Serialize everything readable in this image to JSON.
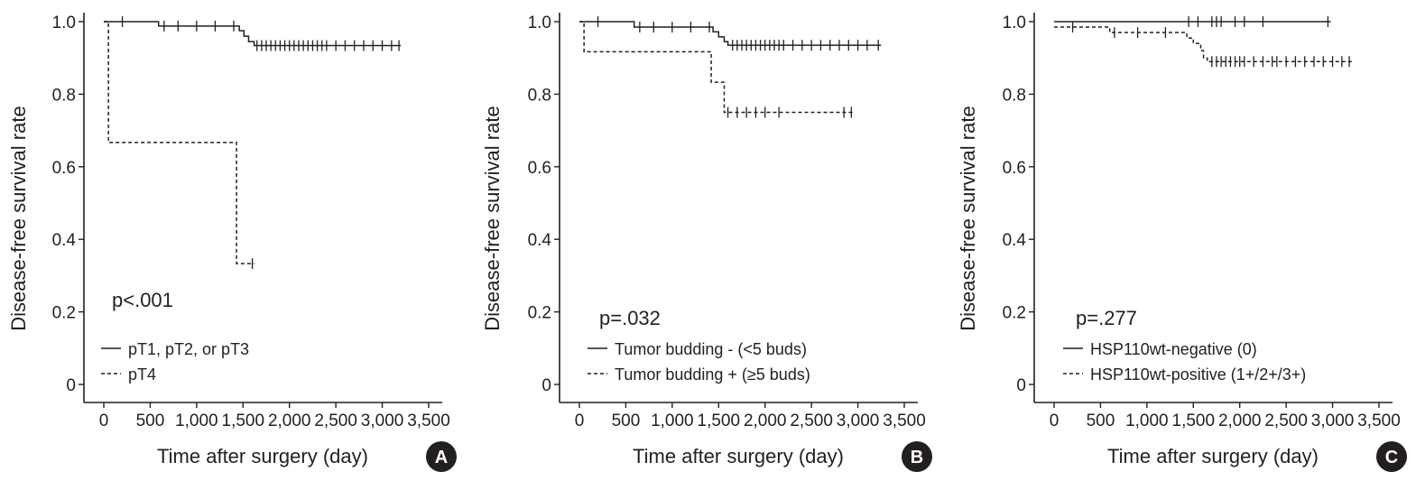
{
  "chart_data": [
    {
      "type": "line",
      "panel_label": "A",
      "xlabel": "Time after surgery (day)",
      "ylabel": "Disease-free survival rate",
      "xlim": [
        0,
        3500
      ],
      "ylim": [
        0,
        1.0
      ],
      "x_ticks": [
        "0",
        "500",
        "1,000",
        "1,500",
        "2,000",
        "2,500",
        "3,000",
        "3,500"
      ],
      "y_ticks": [
        "0",
        "0.2",
        "0.4",
        "0.6",
        "0.8",
        "1.0"
      ],
      "p_value": "p<.001",
      "series": [
        {
          "name": "pT1, pT2, or pT3",
          "line_style": "solid",
          "steps": [
            [
              0,
              1.0
            ],
            [
              590,
              0.988
            ],
            [
              1460,
              0.975
            ],
            [
              1510,
              0.96
            ],
            [
              1560,
              0.945
            ],
            [
              1620,
              0.934
            ],
            [
              3200,
              0.934
            ]
          ],
          "censored": [
            [
              200,
              1.0
            ],
            [
              650,
              0.988
            ],
            [
              800,
              0.988
            ],
            [
              1000,
              0.988
            ],
            [
              1200,
              0.988
            ],
            [
              1400,
              0.988
            ],
            [
              1650,
              0.934
            ],
            [
              1700,
              0.934
            ],
            [
              1750,
              0.934
            ],
            [
              1800,
              0.934
            ],
            [
              1850,
              0.934
            ],
            [
              1900,
              0.934
            ],
            [
              1950,
              0.934
            ],
            [
              2000,
              0.934
            ],
            [
              2050,
              0.934
            ],
            [
              2100,
              0.934
            ],
            [
              2150,
              0.934
            ],
            [
              2200,
              0.934
            ],
            [
              2250,
              0.934
            ],
            [
              2300,
              0.934
            ],
            [
              2350,
              0.934
            ],
            [
              2400,
              0.934
            ],
            [
              2500,
              0.934
            ],
            [
              2600,
              0.934
            ],
            [
              2700,
              0.934
            ],
            [
              2800,
              0.934
            ],
            [
              2900,
              0.934
            ],
            [
              3000,
              0.934
            ],
            [
              3100,
              0.934
            ],
            [
              3180,
              0.934
            ]
          ]
        },
        {
          "name": "pT4",
          "line_style": "dashed",
          "steps": [
            [
              0,
              1.0
            ],
            [
              50,
              0.667
            ],
            [
              1430,
              0.333
            ],
            [
              1620,
              0.333
            ]
          ],
          "censored": [
            [
              1600,
              0.333
            ]
          ]
        }
      ]
    },
    {
      "type": "line",
      "panel_label": "B",
      "xlabel": "Time after surgery (day)",
      "ylabel": "Disease-free survival rate",
      "xlim": [
        0,
        3500
      ],
      "ylim": [
        0,
        1.0
      ],
      "x_ticks": [
        "0",
        "500",
        "1,000",
        "1,500",
        "2,000",
        "2,500",
        "3,000",
        "3,500"
      ],
      "y_ticks": [
        "0",
        "0.2",
        "0.4",
        "0.6",
        "0.8",
        "1.0"
      ],
      "p_value": "p=.032",
      "series": [
        {
          "name": "Tumor budding - (<5 buds)",
          "line_style": "solid",
          "steps": [
            [
              0,
              1.0
            ],
            [
              590,
              0.985
            ],
            [
              1440,
              0.972
            ],
            [
              1500,
              0.958
            ],
            [
              1560,
              0.945
            ],
            [
              1600,
              0.935
            ],
            [
              3250,
              0.935
            ]
          ],
          "censored": [
            [
              200,
              1.0
            ],
            [
              650,
              0.985
            ],
            [
              800,
              0.985
            ],
            [
              1000,
              0.985
            ],
            [
              1200,
              0.985
            ],
            [
              1400,
              0.985
            ],
            [
              1650,
              0.935
            ],
            [
              1700,
              0.935
            ],
            [
              1750,
              0.935
            ],
            [
              1800,
              0.935
            ],
            [
              1850,
              0.935
            ],
            [
              1900,
              0.935
            ],
            [
              1950,
              0.935
            ],
            [
              2000,
              0.935
            ],
            [
              2050,
              0.935
            ],
            [
              2100,
              0.935
            ],
            [
              2150,
              0.935
            ],
            [
              2200,
              0.935
            ],
            [
              2300,
              0.935
            ],
            [
              2400,
              0.935
            ],
            [
              2500,
              0.935
            ],
            [
              2600,
              0.935
            ],
            [
              2700,
              0.935
            ],
            [
              2800,
              0.935
            ],
            [
              2900,
              0.935
            ],
            [
              3000,
              0.935
            ],
            [
              3100,
              0.935
            ],
            [
              3220,
              0.935
            ]
          ]
        },
        {
          "name": "Tumor budding + (≥5 buds)",
          "line_style": "dashed",
          "steps": [
            [
              0,
              1.0
            ],
            [
              50,
              0.917
            ],
            [
              1420,
              0.833
            ],
            [
              1560,
              0.75
            ],
            [
              2970,
              0.75
            ]
          ],
          "censored": [
            [
              1600,
              0.75
            ],
            [
              1700,
              0.75
            ],
            [
              1800,
              0.75
            ],
            [
              1900,
              0.75
            ],
            [
              2000,
              0.75
            ],
            [
              2150,
              0.75
            ],
            [
              2850,
              0.75
            ],
            [
              2930,
              0.75
            ]
          ]
        }
      ]
    },
    {
      "type": "line",
      "panel_label": "C",
      "xlabel": "Time after surgery (day)",
      "ylabel": "Disease-free survival rate",
      "xlim": [
        0,
        3500
      ],
      "ylim": [
        0,
        1.0
      ],
      "x_ticks": [
        "0",
        "500",
        "1,000",
        "1,500",
        "2,000",
        "2,500",
        "3,000",
        "3,500"
      ],
      "y_ticks": [
        "0",
        "0.2",
        "0.4",
        "0.6",
        "0.8",
        "1.0"
      ],
      "p_value": "p=.277",
      "series": [
        {
          "name": "HSP110wt-negative (0)",
          "line_style": "solid",
          "steps": [
            [
              0,
              1.0
            ],
            [
              2980,
              1.0
            ]
          ],
          "censored": [
            [
              1450,
              1.0
            ],
            [
              1550,
              1.0
            ],
            [
              1700,
              1.0
            ],
            [
              1750,
              1.0
            ],
            [
              1800,
              1.0
            ],
            [
              1950,
              1.0
            ],
            [
              2050,
              1.0
            ],
            [
              2250,
              1.0
            ],
            [
              2950,
              1.0
            ]
          ]
        },
        {
          "name": "HSP110wt-positive (1+/2+/3+)",
          "line_style": "dashed",
          "steps": [
            [
              0,
              0.985
            ],
            [
              600,
              0.97
            ],
            [
              1430,
              0.955
            ],
            [
              1500,
              0.94
            ],
            [
              1580,
              0.92
            ],
            [
              1610,
              0.9
            ],
            [
              1650,
              0.89
            ],
            [
              3230,
              0.89
            ]
          ],
          "censored": [
            [
              200,
              0.985
            ],
            [
              650,
              0.97
            ],
            [
              900,
              0.97
            ],
            [
              1200,
              0.97
            ],
            [
              1700,
              0.89
            ],
            [
              1750,
              0.89
            ],
            [
              1800,
              0.89
            ],
            [
              1850,
              0.89
            ],
            [
              1900,
              0.89
            ],
            [
              1950,
              0.89
            ],
            [
              2000,
              0.89
            ],
            [
              2050,
              0.89
            ],
            [
              2150,
              0.89
            ],
            [
              2250,
              0.89
            ],
            [
              2350,
              0.89
            ],
            [
              2400,
              0.89
            ],
            [
              2500,
              0.89
            ],
            [
              2600,
              0.89
            ],
            [
              2700,
              0.89
            ],
            [
              2800,
              0.89
            ],
            [
              2900,
              0.89
            ],
            [
              3000,
              0.89
            ],
            [
              3100,
              0.89
            ],
            [
              3180,
              0.89
            ]
          ]
        }
      ]
    }
  ]
}
